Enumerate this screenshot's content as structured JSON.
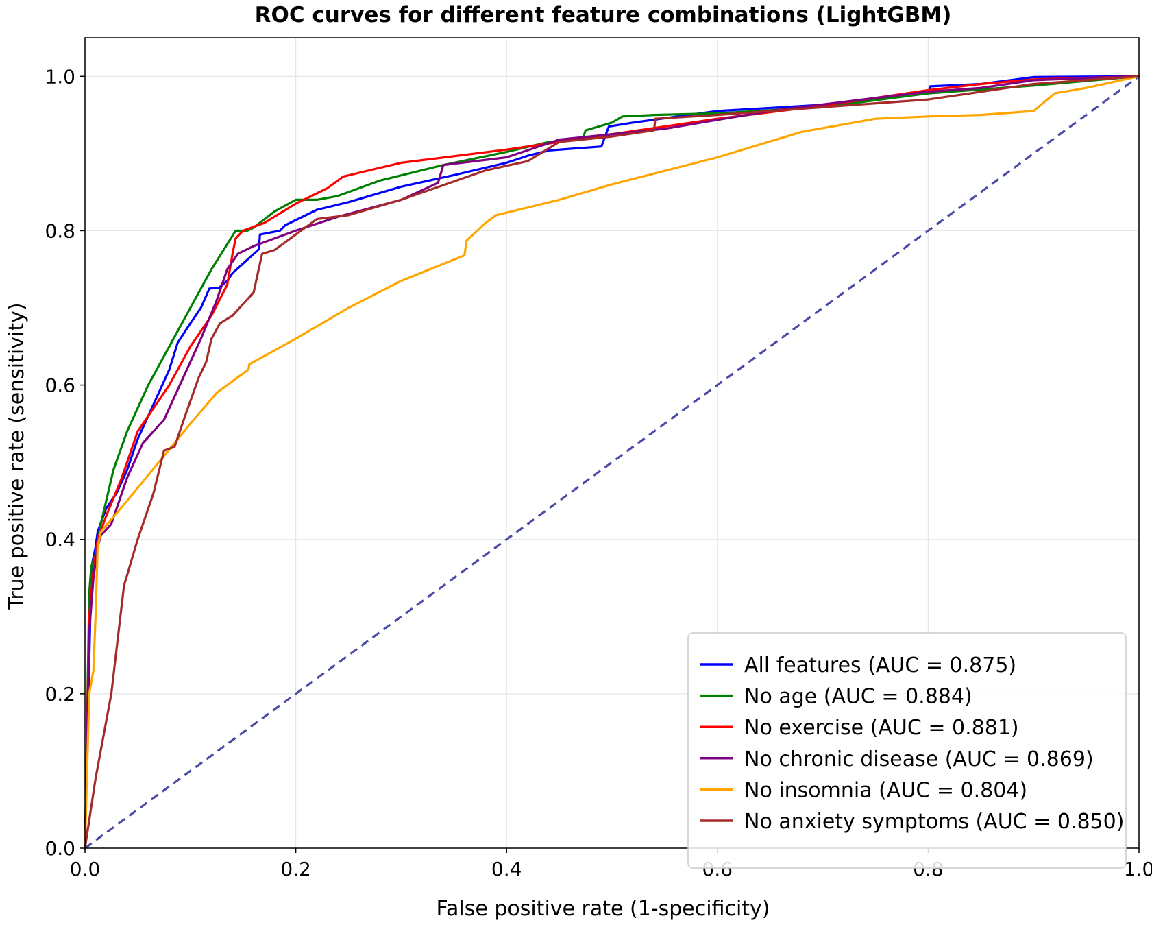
{
  "chart_data": {
    "type": "line",
    "title": "ROC curves for different feature combinations (LightGBM)",
    "xlabel": "False positive rate (1-specificity)",
    "ylabel": "True positive rate (sensitivity)",
    "xlim": [
      0,
      1
    ],
    "ylim": [
      0,
      1.05
    ],
    "xticks": [
      0.0,
      0.2,
      0.4,
      0.6,
      0.8,
      1.0
    ],
    "yticks": [
      0.0,
      0.2,
      0.4,
      0.6,
      0.8,
      1.0
    ],
    "xtick_labels": [
      "0.0",
      "0.2",
      "0.4",
      "0.6",
      "0.8",
      "1.0"
    ],
    "ytick_labels": [
      "0.0",
      "0.2",
      "0.4",
      "0.6",
      "0.8",
      "1.0"
    ],
    "grid": true,
    "legend_position": "bottom-right",
    "series": [
      {
        "name": "All features (AUC = 0.875)",
        "color": "#0000ff",
        "points": [
          [
            0,
            0
          ],
          [
            0.005,
            0.3
          ],
          [
            0.007,
            0.37
          ],
          [
            0.01,
            0.39
          ],
          [
            0.012,
            0.41
          ],
          [
            0.02,
            0.44
          ],
          [
            0.03,
            0.46
          ],
          [
            0.04,
            0.49
          ],
          [
            0.05,
            0.53
          ],
          [
            0.06,
            0.56
          ],
          [
            0.07,
            0.59
          ],
          [
            0.08,
            0.62
          ],
          [
            0.088,
            0.655
          ],
          [
            0.1,
            0.68
          ],
          [
            0.11,
            0.7
          ],
          [
            0.118,
            0.725
          ],
          [
            0.127,
            0.726
          ],
          [
            0.135,
            0.735
          ],
          [
            0.14,
            0.745
          ],
          [
            0.165,
            0.776
          ],
          [
            0.166,
            0.795
          ],
          [
            0.185,
            0.8
          ],
          [
            0.19,
            0.807
          ],
          [
            0.22,
            0.827
          ],
          [
            0.25,
            0.837
          ],
          [
            0.3,
            0.857
          ],
          [
            0.35,
            0.872
          ],
          [
            0.4,
            0.888
          ],
          [
            0.42,
            0.897
          ],
          [
            0.44,
            0.904
          ],
          [
            0.49,
            0.909
          ],
          [
            0.497,
            0.935
          ],
          [
            0.52,
            0.94
          ],
          [
            0.6,
            0.955
          ],
          [
            0.7,
            0.963
          ],
          [
            0.8,
            0.978
          ],
          [
            0.802,
            0.987
          ],
          [
            0.85,
            0.99
          ],
          [
            0.9,
            0.999
          ],
          [
            1.0,
            1.0
          ]
        ]
      },
      {
        "name": "No age (AUC = 0.884)",
        "color": "#008000",
        "points": [
          [
            0,
            0
          ],
          [
            0.004,
            0.33
          ],
          [
            0.006,
            0.365
          ],
          [
            0.01,
            0.38
          ],
          [
            0.015,
            0.42
          ],
          [
            0.027,
            0.49
          ],
          [
            0.04,
            0.54
          ],
          [
            0.06,
            0.6
          ],
          [
            0.08,
            0.65
          ],
          [
            0.1,
            0.7
          ],
          [
            0.12,
            0.75
          ],
          [
            0.143,
            0.8
          ],
          [
            0.154,
            0.8
          ],
          [
            0.16,
            0.804
          ],
          [
            0.18,
            0.825
          ],
          [
            0.2,
            0.84
          ],
          [
            0.22,
            0.84
          ],
          [
            0.24,
            0.845
          ],
          [
            0.28,
            0.865
          ],
          [
            0.34,
            0.885
          ],
          [
            0.4,
            0.902
          ],
          [
            0.44,
            0.915
          ],
          [
            0.472,
            0.918
          ],
          [
            0.475,
            0.93
          ],
          [
            0.5,
            0.94
          ],
          [
            0.51,
            0.948
          ],
          [
            0.54,
            0.95
          ],
          [
            0.6,
            0.952
          ],
          [
            0.7,
            0.96
          ],
          [
            0.8,
            0.978
          ],
          [
            0.9,
            0.988
          ],
          [
            1.0,
            1.0
          ]
        ]
      },
      {
        "name": "No exercise (AUC = 0.881)",
        "color": "#ff0000",
        "points": [
          [
            0,
            0
          ],
          [
            0.004,
            0.3
          ],
          [
            0.008,
            0.36
          ],
          [
            0.012,
            0.4
          ],
          [
            0.02,
            0.43
          ],
          [
            0.035,
            0.48
          ],
          [
            0.05,
            0.54
          ],
          [
            0.065,
            0.57
          ],
          [
            0.08,
            0.6
          ],
          [
            0.1,
            0.65
          ],
          [
            0.12,
            0.69
          ],
          [
            0.135,
            0.73
          ],
          [
            0.14,
            0.77
          ],
          [
            0.143,
            0.79
          ],
          [
            0.15,
            0.8
          ],
          [
            0.17,
            0.81
          ],
          [
            0.2,
            0.835
          ],
          [
            0.23,
            0.855
          ],
          [
            0.245,
            0.87
          ],
          [
            0.26,
            0.875
          ],
          [
            0.3,
            0.888
          ],
          [
            0.4,
            0.905
          ],
          [
            0.5,
            0.925
          ],
          [
            0.6,
            0.945
          ],
          [
            0.7,
            0.962
          ],
          [
            0.8,
            0.982
          ],
          [
            0.85,
            0.99
          ],
          [
            0.9,
            0.996
          ],
          [
            1.0,
            1.0
          ]
        ]
      },
      {
        "name": "No chronic disease (AUC = 0.869)",
        "color": "#800080",
        "points": [
          [
            0,
            0
          ],
          [
            0.004,
            0.28
          ],
          [
            0.008,
            0.35
          ],
          [
            0.012,
            0.39
          ],
          [
            0.015,
            0.405
          ],
          [
            0.025,
            0.42
          ],
          [
            0.04,
            0.48
          ],
          [
            0.055,
            0.525
          ],
          [
            0.075,
            0.555
          ],
          [
            0.09,
            0.6
          ],
          [
            0.11,
            0.66
          ],
          [
            0.125,
            0.71
          ],
          [
            0.135,
            0.75
          ],
          [
            0.145,
            0.77
          ],
          [
            0.16,
            0.78
          ],
          [
            0.2,
            0.8
          ],
          [
            0.24,
            0.818
          ],
          [
            0.3,
            0.84
          ],
          [
            0.335,
            0.862
          ],
          [
            0.34,
            0.885
          ],
          [
            0.4,
            0.895
          ],
          [
            0.45,
            0.918
          ],
          [
            0.55,
            0.932
          ],
          [
            0.65,
            0.955
          ],
          [
            0.75,
            0.972
          ],
          [
            0.8,
            0.98
          ],
          [
            0.85,
            0.985
          ],
          [
            0.9,
            0.995
          ],
          [
            1.0,
            1.0
          ]
        ]
      },
      {
        "name": "No insomnia (AUC = 0.804)",
        "color": "#ffa500",
        "points": [
          [
            0,
            0
          ],
          [
            0.004,
            0.2
          ],
          [
            0.008,
            0.23
          ],
          [
            0.01,
            0.3
          ],
          [
            0.012,
            0.39
          ],
          [
            0.015,
            0.41
          ],
          [
            0.04,
            0.45
          ],
          [
            0.07,
            0.5
          ],
          [
            0.1,
            0.55
          ],
          [
            0.125,
            0.59
          ],
          [
            0.145,
            0.61
          ],
          [
            0.155,
            0.62
          ],
          [
            0.156,
            0.627
          ],
          [
            0.2,
            0.66
          ],
          [
            0.25,
            0.7
          ],
          [
            0.3,
            0.735
          ],
          [
            0.36,
            0.768
          ],
          [
            0.362,
            0.787
          ],
          [
            0.38,
            0.81
          ],
          [
            0.39,
            0.82
          ],
          [
            0.45,
            0.84
          ],
          [
            0.5,
            0.86
          ],
          [
            0.6,
            0.895
          ],
          [
            0.68,
            0.928
          ],
          [
            0.75,
            0.945
          ],
          [
            0.8,
            0.948
          ],
          [
            0.85,
            0.95
          ],
          [
            0.9,
            0.955
          ],
          [
            0.92,
            0.978
          ],
          [
            0.95,
            0.985
          ],
          [
            1.0,
            1.0
          ]
        ]
      },
      {
        "name": "No anxiety symptoms (AUC = 0.850)",
        "color": "#a52a2a",
        "points": [
          [
            0,
            0
          ],
          [
            0.01,
            0.09
          ],
          [
            0.025,
            0.2
          ],
          [
            0.037,
            0.34
          ],
          [
            0.05,
            0.4
          ],
          [
            0.065,
            0.46
          ],
          [
            0.075,
            0.515
          ],
          [
            0.085,
            0.52
          ],
          [
            0.095,
            0.56
          ],
          [
            0.108,
            0.61
          ],
          [
            0.115,
            0.63
          ],
          [
            0.12,
            0.66
          ],
          [
            0.128,
            0.68
          ],
          [
            0.14,
            0.69
          ],
          [
            0.16,
            0.72
          ],
          [
            0.168,
            0.77
          ],
          [
            0.18,
            0.775
          ],
          [
            0.2,
            0.795
          ],
          [
            0.22,
            0.815
          ],
          [
            0.25,
            0.82
          ],
          [
            0.3,
            0.84
          ],
          [
            0.38,
            0.878
          ],
          [
            0.42,
            0.89
          ],
          [
            0.45,
            0.915
          ],
          [
            0.5,
            0.922
          ],
          [
            0.54,
            0.93
          ],
          [
            0.541,
            0.945
          ],
          [
            0.6,
            0.95
          ],
          [
            0.7,
            0.96
          ],
          [
            0.8,
            0.97
          ],
          [
            0.85,
            0.98
          ],
          [
            0.9,
            0.99
          ],
          [
            1.0,
            1.0
          ]
        ]
      }
    ],
    "reference_line": {
      "color": "#4b4ba8",
      "points": [
        [
          0,
          0
        ],
        [
          1,
          1
        ]
      ]
    }
  }
}
